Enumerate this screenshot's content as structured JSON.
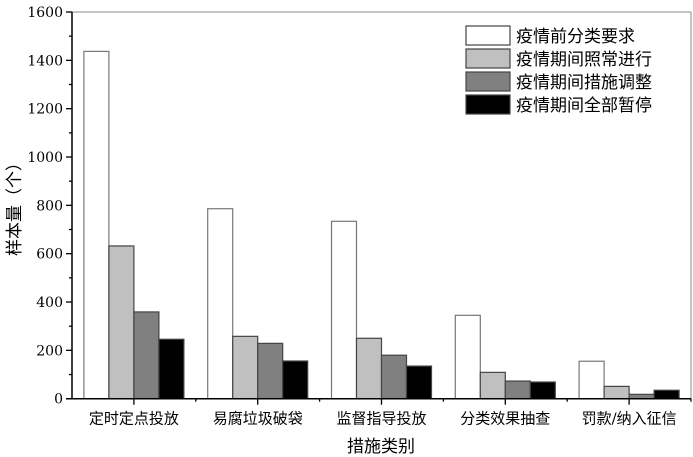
{
  "chart_data": {
    "type": "bar",
    "xlabel": "措施类别",
    "ylabel": "样本量（个）",
    "ylim": [
      0,
      1600
    ],
    "yticks": [
      0,
      200,
      400,
      600,
      800,
      1000,
      1200,
      1400,
      1600
    ],
    "categories": [
      "定时定点投放",
      "易腐垃圾破袋",
      "监督指导投放",
      "分类效果抽查",
      "罚款/纳入征信"
    ],
    "legend_position": "top-right",
    "grid": false,
    "series": [
      {
        "name": "疫情前分类要求",
        "color": "#ffffff",
        "values": [
          1437,
          786,
          734,
          345,
          155
        ]
      },
      {
        "name": "疫情期间照常进行",
        "color": "#c0c0c0",
        "values": [
          632,
          258,
          250,
          109,
          51
        ]
      },
      {
        "name": "疫情期间措施调整",
        "color": "#808080",
        "values": [
          359,
          229,
          180,
          73,
          18
        ]
      },
      {
        "name": "疫情期间全部暂停",
        "color": "#000000",
        "values": [
          246,
          156,
          135,
          69,
          35
        ]
      }
    ]
  }
}
